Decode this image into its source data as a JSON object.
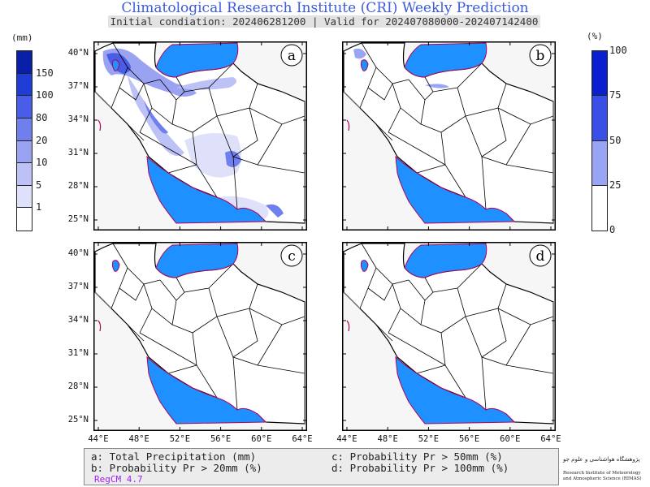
{
  "title": "Climatological Research Institute (CRI) Weekly Prediction",
  "subtitle": "Initial condiation: 202406281200 | Valid for 202407080000-202407142400",
  "colorbar_left": {
    "unit": "(mm)",
    "ticks": [
      "150",
      "100",
      "80",
      "20",
      "10",
      "5",
      "1"
    ],
    "colors": [
      "#0a1fa8",
      "#1e3cd6",
      "#4a5de8",
      "#6f7fee",
      "#9aa3f2",
      "#bcc1f6",
      "#dfe1fa",
      "#ffffff"
    ]
  },
  "colorbar_right": {
    "unit": "(%)",
    "ticks": [
      "100",
      "75",
      "50",
      "25",
      "0"
    ],
    "colors": [
      "#0a1fd0",
      "#3a4fe6",
      "#9aa4f4",
      "#ffffff"
    ]
  },
  "panels": [
    {
      "id": "a",
      "label": "a"
    },
    {
      "id": "b",
      "label": "b"
    },
    {
      "id": "c",
      "label": "c"
    },
    {
      "id": "d",
      "label": "d"
    }
  ],
  "lat_labels": [
    "40°N",
    "37°N",
    "34°N",
    "31°N",
    "28°N",
    "25°N"
  ],
  "lon_labels": [
    "44°E",
    "48°E",
    "52°E",
    "56°E",
    "60°E",
    "64°E"
  ],
  "legend": {
    "a": "a: Total Precipitation (mm)",
    "b": "b: Probability Pr > 20mm (%)",
    "c": "c: Probability Pr > 50mm (%)",
    "d": "d: Probability Pr > 100mm (%)",
    "model": "RegCM 4.7"
  },
  "logo": {
    "persian": "پژوهشگاه هواشناسی و علوم جو",
    "english_line1": "Research Institute of Meteorology",
    "english_line2": "and Atmospheric Science (RIMAS)"
  },
  "colors": {
    "sea": "#1e90ff",
    "coast": "#b0005a",
    "title": "#3b5bdb"
  }
}
